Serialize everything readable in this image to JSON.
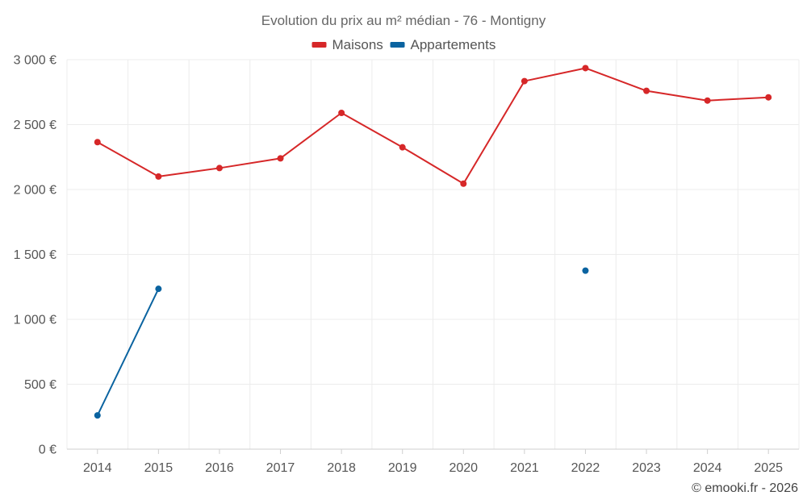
{
  "chart_data": {
    "type": "line",
    "title": "Evolution du prix au m² médian - 76 - Montigny",
    "categories": [
      "2014",
      "2015",
      "2016",
      "2017",
      "2018",
      "2019",
      "2020",
      "2021",
      "2022",
      "2023",
      "2024",
      "2025"
    ],
    "series": [
      {
        "name": "Maisons",
        "color": "#d62728",
        "values": [
          2365,
          2100,
          2165,
          2240,
          2590,
          2325,
          2045,
          2835,
          2935,
          2760,
          2685,
          2710
        ]
      },
      {
        "name": "Appartements",
        "color": "#0a63a0",
        "values": [
          260,
          1235,
          null,
          null,
          null,
          null,
          null,
          null,
          1375,
          null,
          null,
          null
        ]
      }
    ],
    "ylim": [
      0,
      3000
    ],
    "yticks": [
      0,
      500,
      1000,
      1500,
      2000,
      2500,
      3000
    ],
    "ytick_labels": [
      "0 €",
      "500 €",
      "1 000 €",
      "1 500 €",
      "2 000 €",
      "2 500 €",
      "3 000 €"
    ],
    "xlabel": "",
    "ylabel": "",
    "legend_position": "top-center",
    "grid": true
  },
  "credit": "© emooki.fr - 2026"
}
